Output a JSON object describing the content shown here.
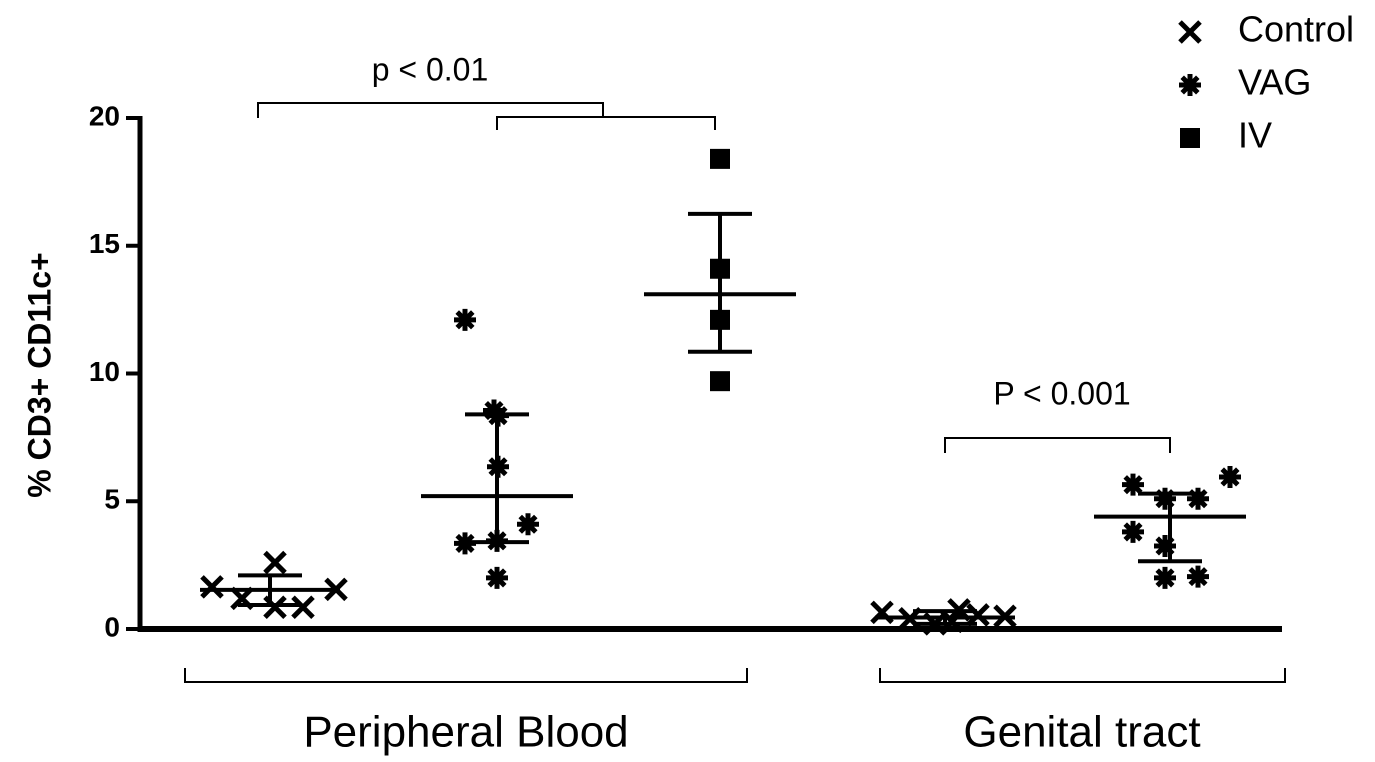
{
  "chart_data": {
    "type": "dot",
    "y_label": "% CD3+ CD11c+",
    "categories": [
      "Peripheral Blood",
      "Genital tract"
    ],
    "ylim": [
      0,
      20
    ],
    "yticks": [
      0,
      5,
      10,
      15,
      20
    ],
    "annotations": [
      "p < 0.01",
      "P < 0.001"
    ],
    "series": [
      {
        "name": "Control",
        "marker": "x",
        "color": "#000000",
        "values": [
          [
            1.65,
            1.2,
            2.6,
            0.85,
            0.85,
            1.55
          ],
          [
            0.65,
            0.4,
            0.2,
            0.3,
            0.75,
            0.55,
            0.5
          ]
        ],
        "mean": [
          1.53,
          0.45
        ],
        "upper": [
          2.1,
          0.7
        ],
        "lower": [
          0.94,
          0.2
        ]
      },
      {
        "name": "VAG",
        "marker": "star",
        "color": "#000000",
        "values": [
          [
            12.1,
            8.55,
            8.35,
            6.35,
            4.1,
            3.45,
            3.35,
            2.0
          ],
          [
            5.95,
            5.65,
            5.1,
            5.1,
            3.8,
            3.25,
            2.0,
            2.05
          ]
        ],
        "mean": [
          5.2,
          4.4
        ],
        "upper": [
          8.4,
          5.3
        ],
        "lower": [
          3.4,
          2.65
        ]
      },
      {
        "name": "IV",
        "marker": "square",
        "color": "#000000",
        "values": [
          [
            18.4,
            14.1,
            12.1,
            9.7
          ],
          null
        ],
        "mean": [
          13.1,
          null
        ],
        "upper": [
          16.25,
          null
        ],
        "lower": [
          10.85,
          null
        ]
      }
    ]
  }
}
